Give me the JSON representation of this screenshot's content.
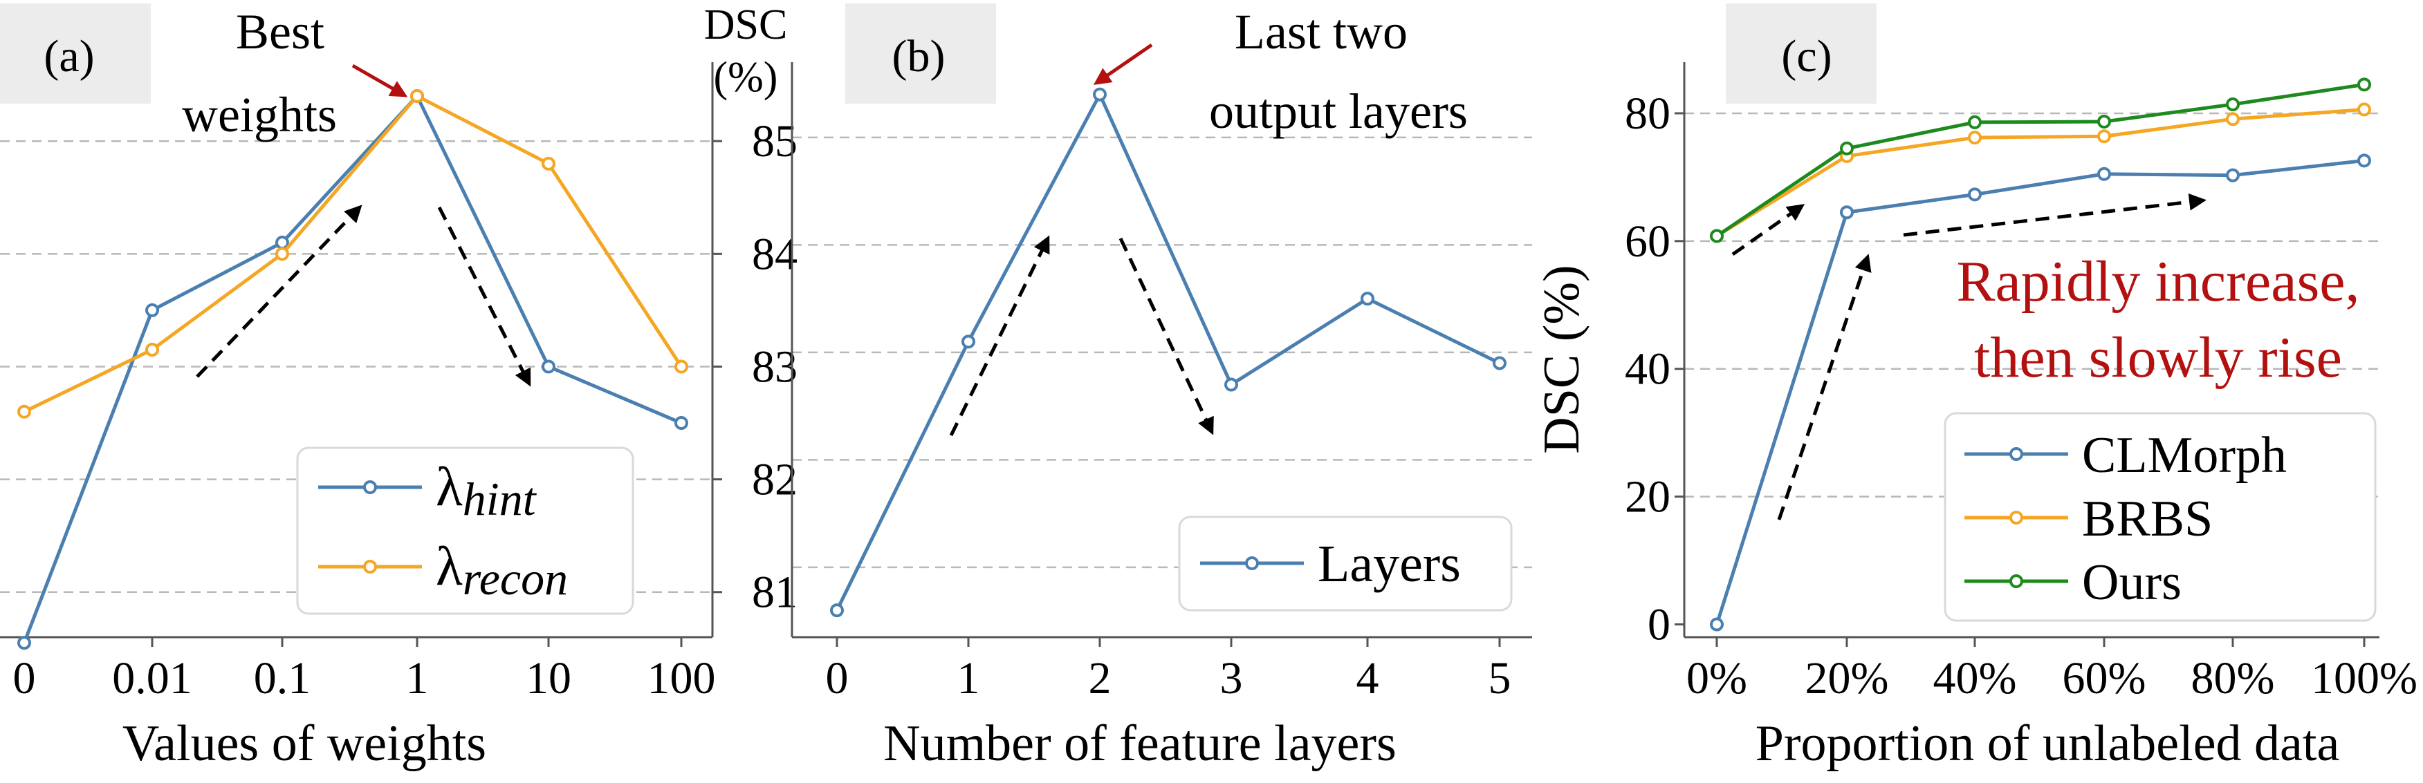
{
  "colors": {
    "blue": "#4a7fb0",
    "orange": "#f5a623",
    "green": "#1e8a1e",
    "red": "#b31010"
  },
  "chart_data": [
    {
      "type": "line",
      "panel_label": "(a)",
      "categories": [
        "0",
        "0.01",
        "0.1",
        "1",
        "10",
        "100"
      ],
      "xlabel": "Values of weights",
      "ylabel_line1": "DSC",
      "ylabel_line2": "(%)",
      "ylim": [
        80.6,
        85.7
      ],
      "yticks": [
        "81",
        "82",
        "83",
        "84",
        "85"
      ],
      "y_axis_side": "right",
      "grid": "horizontal-dashed",
      "legend_position": "bottom-right",
      "series": [
        {
          "name": "λhint",
          "name_base": "λ",
          "name_sub": "hint",
          "color": "#4a7fb0",
          "values": [
            80.55,
            83.5,
            84.1,
            85.4,
            83.0,
            82.5
          ]
        },
        {
          "name": "λrecon",
          "name_base": "λ",
          "name_sub": "recon",
          "color": "#f5a623",
          "values": [
            82.6,
            83.15,
            84.0,
            85.4,
            84.8,
            83.0
          ]
        }
      ],
      "annotation_line1": "Best",
      "annotation_line2": "weights"
    },
    {
      "type": "line",
      "panel_label": "(b)",
      "categories": [
        "0",
        "1",
        "2",
        "3",
        "4",
        "5"
      ],
      "xlabel": "Number of feature layers",
      "ylim": [
        80.35,
        85.7
      ],
      "grid": "horizontal-dashed",
      "legend_position": "bottom-right",
      "series": [
        {
          "name": "Layers",
          "color": "#4a7fb0",
          "values": [
            80.6,
            83.1,
            85.4,
            82.7,
            83.5,
            82.9
          ]
        }
      ],
      "annotation_line1": "Last two",
      "annotation_line2": "output layers"
    },
    {
      "type": "line",
      "panel_label": "(c)",
      "categories": [
        "0%",
        "20%",
        "40%",
        "60%",
        "80%",
        "100%"
      ],
      "xlabel": "Proportion of unlabeled data",
      "ylabel": "DSC (%)",
      "ylim": [
        -2,
        88
      ],
      "yticks": [
        "0",
        "20",
        "40",
        "60",
        "80"
      ],
      "grid": "horizontal-dashed",
      "legend_position": "bottom-right",
      "series": [
        {
          "name": "CLMorph",
          "color": "#4a7fb0",
          "values": [
            0.0,
            64.5,
            67.3,
            70.5,
            70.3,
            72.6
          ]
        },
        {
          "name": "BRBS",
          "color": "#f5a623",
          "values": [
            60.8,
            73.3,
            76.2,
            76.4,
            79.1,
            80.6
          ]
        },
        {
          "name": "Ours",
          "color": "#1e8a1e",
          "values": [
            60.8,
            74.5,
            78.6,
            78.7,
            81.4,
            84.5
          ]
        }
      ],
      "annotation_line1": "Rapidly increase,",
      "annotation_line2": "then slowly rise"
    }
  ]
}
